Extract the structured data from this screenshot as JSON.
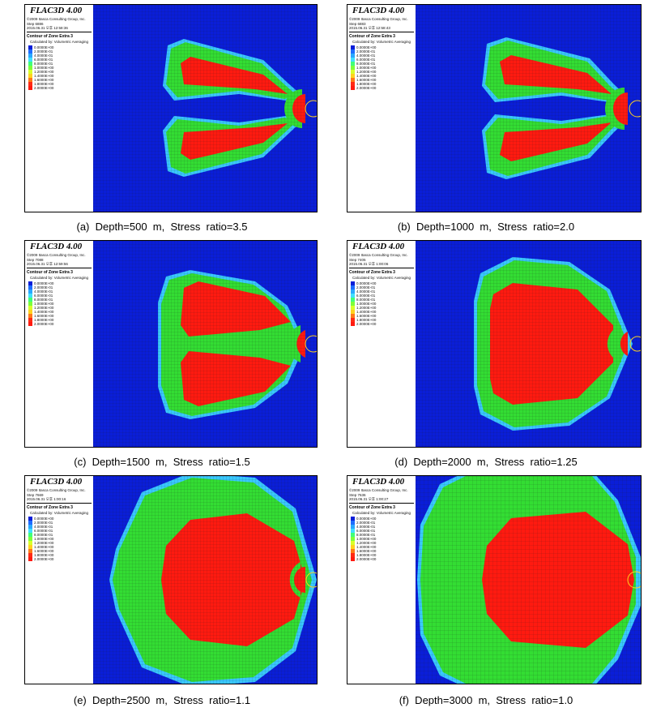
{
  "legend_colors": [
    "#0a1ed8",
    "#1e6cff",
    "#29a8ff",
    "#3fe0ff",
    "#40ff7a",
    "#7dff3a",
    "#d8ff2a",
    "#ffd21e",
    "#ff7a18",
    "#ff2a14"
  ],
  "palette": {
    "zone_red": "#ff1a10",
    "zone_green": "#33dd33",
    "zone_cyan": "#39c9ff",
    "grid": "#1a1a1a",
    "background": "#0a1ed8"
  },
  "panels": [
    {
      "id": "a",
      "software": "FLAC3D 4.00",
      "copyright": "©2009 Itasca Consulting Group, Inc.",
      "step": "Step 6886",
      "date": "2015.06.31 오후 12:58:36",
      "contour_title": "Contour of Zone Extra 3",
      "calc": "Calculated by: Volumetric Averaging",
      "levels": [
        "0.0000E+00",
        "2.0000E-01",
        "4.0000E-01",
        "6.0000E-01",
        "8.0000E-01",
        "1.0000E+00",
        "1.2000E+00",
        "1.4000E+00",
        "1.6000E+00",
        "1.8000E+00",
        "2.0000E+00"
      ],
      "caption": "(a)  Depth=500  m,  Stress  ratio=3.5"
    },
    {
      "id": "b",
      "software": "FLAC3D 4.00",
      "copyright": "©2009 Itasca Consulting Group, Inc.",
      "step": "Step 6883",
      "date": "2015.06.31 오후 12:58:43",
      "contour_title": "Contour of Zone Extra 3",
      "calc": "Calculated by: Volumetric Averaging",
      "levels": [
        "0.0000E+00",
        "2.0000E-01",
        "4.0000E-01",
        "6.0000E-01",
        "8.0000E-01",
        "1.0000E+00",
        "1.2000E+00",
        "1.4000E+00",
        "1.6000E+00",
        "1.8000E+00",
        "2.0000E+00"
      ],
      "caption": "(b)  Depth=1000  m,  Stress  ratio=2.0"
    },
    {
      "id": "c",
      "software": "FLAC3D 4.00",
      "copyright": "©2009 Itasca Consulting Group, Inc.",
      "step": "Step 7088",
      "date": "2015.06.31 오후 12:59:56",
      "contour_title": "Contour of Zone Extra 3",
      "calc": "Calculated by: Volumetric Averaging",
      "levels": [
        "0.0000E+00",
        "2.0000E-01",
        "4.0000E-01",
        "6.0000E-01",
        "8.0000E-01",
        "1.0000E+00",
        "1.2000E+00",
        "1.4000E+00",
        "1.6000E+00",
        "1.8000E+00",
        "2.0000E+00"
      ],
      "caption": "(c)  Depth=1500  m,  Stress  ratio=1.5"
    },
    {
      "id": "d",
      "software": "FLAC3D 4.00",
      "copyright": "©2009 Itasca Consulting Group, Inc.",
      "step": "Step 7405",
      "date": "2015.06.31 오후 1:00:06",
      "contour_title": "Contour of Zone Extra 3",
      "calc": "Calculated by: Volumetric Averaging",
      "levels": [
        "0.0000E+00",
        "2.0000E-01",
        "4.0000E-01",
        "6.0000E-01",
        "8.0000E-01",
        "1.0000E+00",
        "1.2000E+00",
        "1.4000E+00",
        "1.6000E+00",
        "1.8000E+00",
        "2.0000E+00"
      ],
      "caption": "(d)  Depth=2000  m,  Stress  ratio=1.25"
    },
    {
      "id": "e",
      "software": "FLAC3D 4.00",
      "copyright": "©2009 Itasca Consulting Group, Inc.",
      "step": "Step 7669",
      "date": "2015.06.31 오후 1:00:16",
      "contour_title": "Contour of Zone Extra 3",
      "calc": "Calculated by: Volumetric Averaging",
      "levels": [
        "0.0000E+00",
        "2.0000E-01",
        "4.0000E-01",
        "6.0000E-01",
        "8.0000E-01",
        "1.0000E+00",
        "1.2000E+00",
        "1.4000E+00",
        "1.6000E+00",
        "1.8000E+00",
        "2.0000E+00"
      ],
      "caption": "(e)  Depth=2500  m,  Stress  ratio=1.1"
    },
    {
      "id": "f",
      "software": "FLAC3D 4.00",
      "copyright": "©2009 Itasca Consulting Group, Inc.",
      "step": "Step 7636",
      "date": "2015.06.31 오후 1:00:27",
      "contour_title": "Contour of Zone Extra 3",
      "calc": "Calculated by: Volumetric Averaging",
      "levels": [
        "0.0000E+00",
        "2.0000E-01",
        "4.0000E-01",
        "6.0000E-01",
        "8.0000E-01",
        "1.0000E+00",
        "1.2000E+00",
        "1.4000E+00",
        "1.6000E+00",
        "1.8000E+00",
        "2.0000E+00"
      ],
      "caption": "(f)  Depth=3000  m,  Stress  ratio=1.0"
    }
  ]
}
